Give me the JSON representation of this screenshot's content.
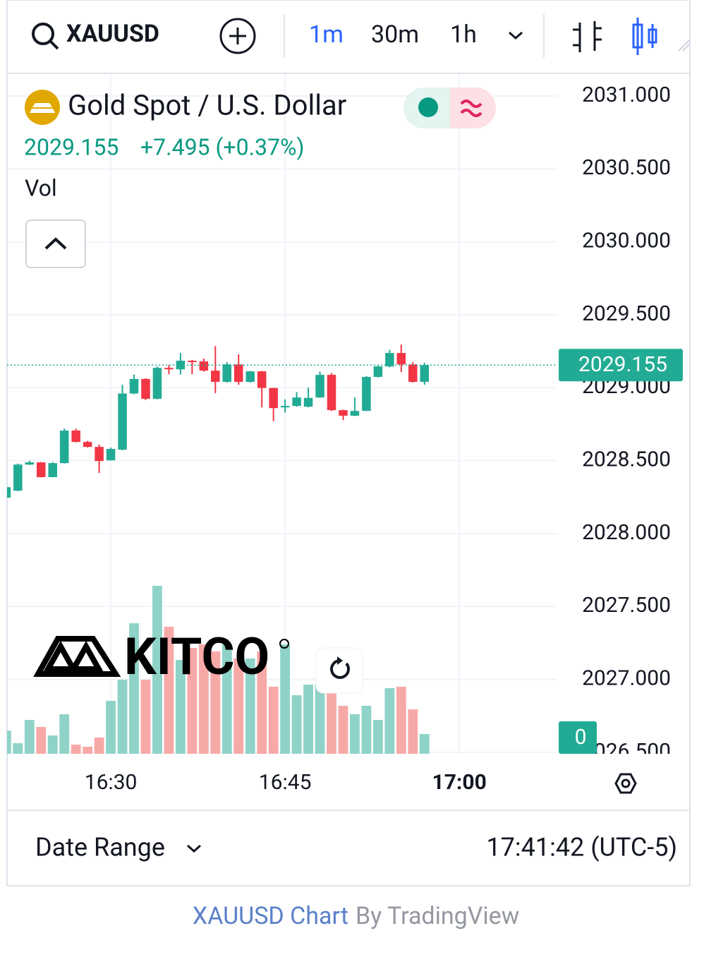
{
  "ui": {
    "symbol": "XAUUSD",
    "intervals": [
      "1m",
      "30m",
      "1h"
    ],
    "title": "Gold Spot / U.S. Dollar",
    "price_change": "+7.495 (+0.37%)",
    "volume_label": "Vol",
    "watermark": "KITCO",
    "date_range": "Date Range",
    "clock": "17:41:42 (UTC-5)",
    "footer_link": "XAUUSD Chart",
    "footer_by": "By TradingView"
  },
  "chart_data": {
    "type": "candlestick",
    "x": [
      981,
      982,
      983,
      984,
      985,
      986,
      987,
      988,
      989,
      990,
      991,
      992,
      993,
      994,
      995,
      996,
      997,
      998,
      999,
      1000,
      1001,
      1002,
      1003,
      1004,
      1005,
      1006,
      1007,
      1008,
      1009,
      1010,
      1011,
      1012,
      1013,
      1014,
      1015,
      1016,
      1017
    ],
    "open": [
      2028.246,
      2028.294,
      2028.473,
      2028.488,
      2028.387,
      2028.483,
      2028.706,
      2028.628,
      2028.594,
      2028.502,
      2028.575,
      2028.96,
      2029.06,
      2028.924,
      2029.136,
      2029.126,
      2029.185,
      2029.18,
      2029.117,
      2029.04,
      2029.16,
      2029.04,
      2029.112,
      2028.998,
      2028.865,
      2028.875,
      2028.87,
      2028.933,
      2029.088,
      2028.846,
      2028.808,
      2028.841,
      2029.074,
      2029.146,
      2029.238,
      2029.16,
      2029.04
    ],
    "high": [
      2028.34,
      2028.48,
      2028.5,
      2028.49,
      2028.49,
      2028.72,
      2028.72,
      2028.635,
      2028.61,
      2028.59,
      2029.02,
      2029.09,
      2029.065,
      2029.145,
      2029.155,
      2029.238,
      2029.19,
      2029.2,
      2029.286,
      2029.175,
      2029.228,
      2029.115,
      2029.115,
      2029.0,
      2028.92,
      2028.97,
      2029.0,
      2029.11,
      2029.1,
      2028.85,
      2028.933,
      2029.08,
      2029.15,
      2029.26,
      2029.296,
      2029.175,
      2029.17
    ],
    "low": [
      2028.24,
      2028.29,
      2028.47,
      2028.385,
      2028.385,
      2028.48,
      2028.625,
      2028.59,
      2028.415,
      2028.5,
      2028.57,
      2028.955,
      2028.915,
      2028.92,
      2029.093,
      2029.09,
      2029.093,
      2029.11,
      2028.962,
      2029.035,
      2029.02,
      2029.035,
      2028.865,
      2028.77,
      2028.83,
      2028.87,
      2028.865,
      2028.93,
      2028.84,
      2028.778,
      2028.805,
      2028.84,
      2029.07,
      2029.14,
      2029.107,
      2029.035,
      2029.02
    ],
    "close": [
      2028.318,
      2028.473,
      2028.488,
      2028.387,
      2028.483,
      2028.706,
      2028.628,
      2028.594,
      2028.497,
      2028.58,
      2028.96,
      2029.06,
      2028.924,
      2029.136,
      2029.126,
      2029.185,
      2029.18,
      2029.117,
      2029.04,
      2029.16,
      2029.04,
      2029.112,
      2028.998,
      2028.86,
      2028.875,
      2028.933,
      2028.93,
      2029.088,
      2028.846,
      2028.808,
      2028.841,
      2029.074,
      2029.146,
      2029.238,
      2029.16,
      2029.04,
      2029.155
    ],
    "volume": [
      33,
      15,
      48,
      38,
      26,
      56,
      13,
      10,
      23,
      75,
      105,
      185,
      105,
      238,
      180,
      133,
      150,
      155,
      145,
      155,
      135,
      135,
      145,
      95,
      155,
      83,
      98,
      98,
      108,
      68,
      56,
      68,
      48,
      93,
      95,
      63,
      28
    ],
    "volume_ylim": [
      0,
      300
    ],
    "volume_ticks": [
      0
    ],
    "last_price": 2029.155,
    "up_color": "#22ab94",
    "down_color": "#f23645",
    "volume_up_color": "#8fd3c8",
    "volume_down_color": "#f7a9a7",
    "xlim": [
      981.07,
      1028.43
    ],
    "xticks": [
      {
        "value": 990,
        "label": "16:30"
      },
      {
        "value": 1005,
        "label": "16:45"
      },
      {
        "value": 1020,
        "label": "17:00"
      }
    ],
    "ylim": [
      2026.49,
      2031.15
    ],
    "yticks": [
      {
        "value": 2026.5,
        "label": "2026.500"
      },
      {
        "value": 2027,
        "label": "2027.000"
      },
      {
        "value": 2027.5,
        "label": "2027.500"
      },
      {
        "value": 2028,
        "label": "2028.000"
      },
      {
        "value": 2028.5,
        "label": "2028.500"
      },
      {
        "value": 2029,
        "label": "2029.000"
      },
      {
        "value": 2029.5,
        "label": "2029.500"
      },
      {
        "value": 2030,
        "label": "2030.000"
      },
      {
        "value": 2030.5,
        "label": "2030.500"
      },
      {
        "value": 2031,
        "label": "2031.000"
      }
    ],
    "grid": true
  }
}
